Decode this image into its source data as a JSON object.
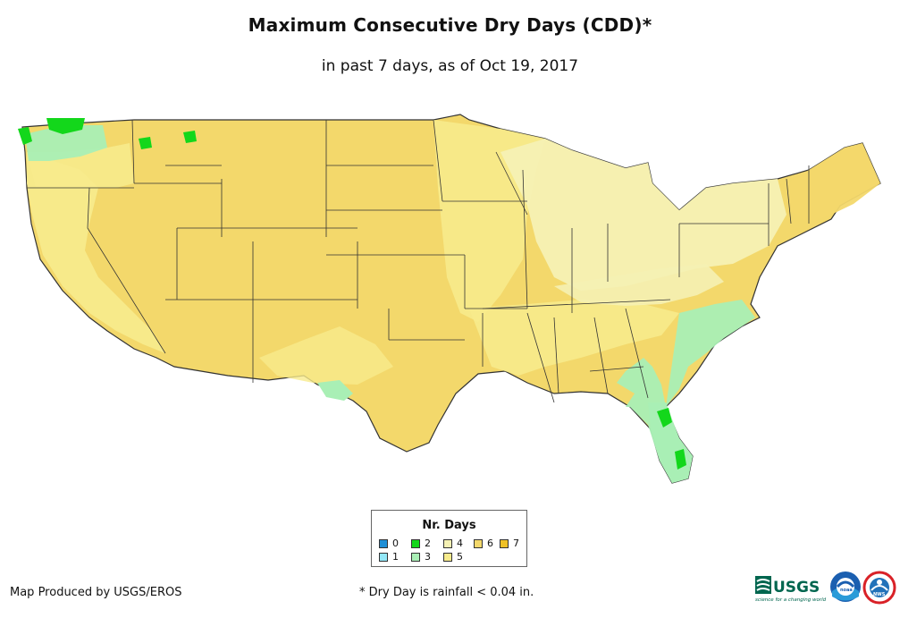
{
  "title": "Maximum Consecutive Dry Days (CDD)*",
  "subtitle": "in past 7 days, as of Oct 19, 2017",
  "legend": {
    "title": "Nr. Days",
    "items": [
      {
        "label": "0",
        "color": "#1f8fd6"
      },
      {
        "label": "1",
        "color": "#93e8f8"
      },
      {
        "label": "2",
        "color": "#13d71b"
      },
      {
        "label": "3",
        "color": "#a9efb5"
      },
      {
        "label": "4",
        "color": "#f5f1b4"
      },
      {
        "label": "5",
        "color": "#f7eb8c"
      },
      {
        "label": "6",
        "color": "#f3d86b"
      },
      {
        "label": "7",
        "color": "#efc126"
      }
    ]
  },
  "footer": {
    "left": "Map Produced by USGS/EROS",
    "note": "* Dry Day is rainfall < 0.04 in."
  },
  "logos": {
    "usgs_text": "USGS",
    "usgs_tagline": "science for a changing world",
    "noaa_label": "noaa",
    "nws_label": "NWS"
  },
  "map": {
    "region": "Continental United States",
    "dominant_color": "#f3d86b"
  }
}
